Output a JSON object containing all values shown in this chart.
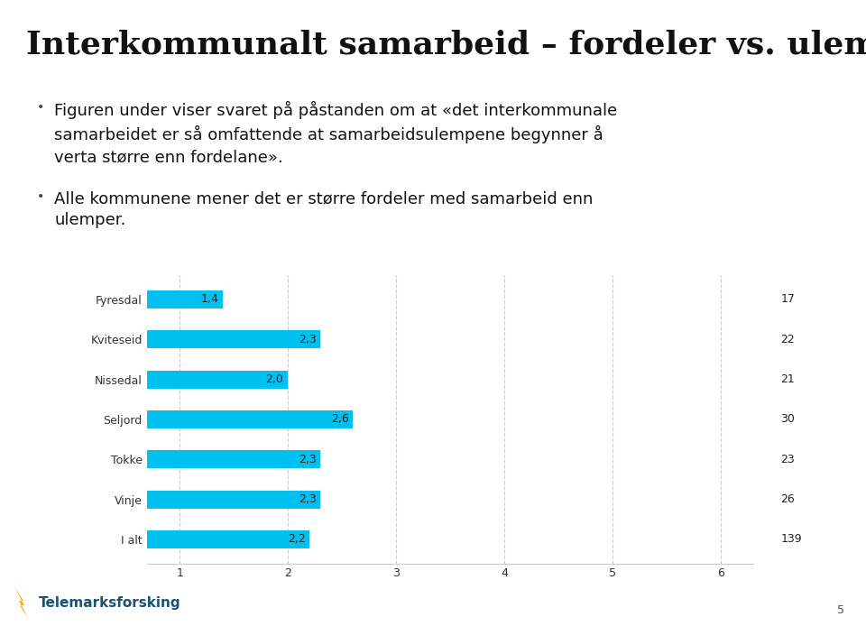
{
  "title_line1": "Interkommunalt samarbeid – fordeler vs.",
  "title_line2": "ulemper",
  "title": "Interkommunalt samarbeid – fordeler vs. ulemper",
  "bullet1": "Figuren under viser svaret på påstanden om at «det interkommunale\nsamarbeidet er så omfattende at samarbeidsulempene begynner å\nverta større enn fordelane».",
  "bullet2": "Alle kommunene mener det er større fordeler med samarbeid enn\nulemper.",
  "categories": [
    "Fyresdal",
    "Kviteseid",
    "Nissedal",
    "Seljord",
    "Tokke",
    "Vinje",
    "I alt"
  ],
  "values": [
    1.4,
    2.3,
    2.0,
    2.6,
    2.3,
    2.3,
    2.2
  ],
  "n_values": [
    17,
    22,
    21,
    30,
    23,
    26,
    139
  ],
  "bar_color": "#00C0F0",
  "xlim_left": 0.7,
  "xlim_right": 6.3,
  "xticks": [
    1,
    2,
    3,
    4,
    5,
    6
  ],
  "background_color": "#FFFFFF",
  "title_fontsize": 26,
  "bullet_fontsize": 13,
  "bar_label_fontsize": 9,
  "axis_fontsize": 9,
  "category_fontsize": 9,
  "n_fontsize": 9,
  "grid_color": "#CCCCCC",
  "separator_color": "#BBBBBB",
  "footer_bg": "#EFEFEF",
  "footer_text_color": "#1a5276",
  "page_num": "5"
}
